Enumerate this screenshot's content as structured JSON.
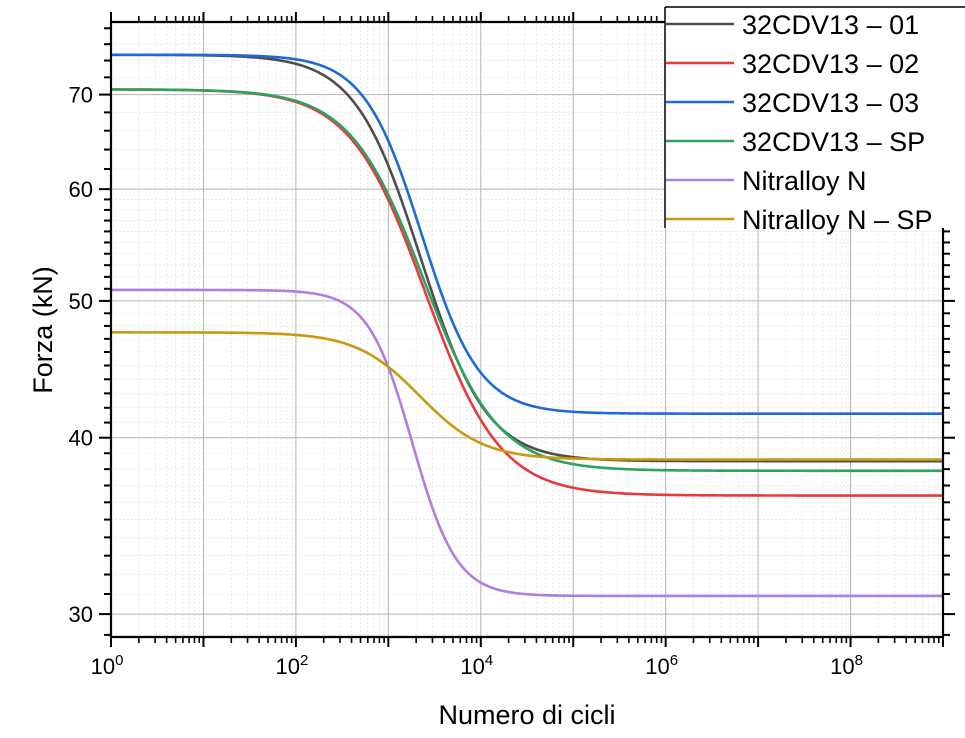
{
  "chart_data": {
    "type": "line",
    "title": "",
    "xlabel": "Numero di cicli",
    "ylabel": "Forza (kN)",
    "xscale": "log",
    "yscale": "log",
    "xlim": [
      1,
      1000000000
    ],
    "ylim": [
      28.9,
      78.8
    ],
    "x_ticks": [
      {
        "value": 1,
        "base": "10",
        "exp": "0"
      },
      {
        "value": 100,
        "base": "10",
        "exp": "2"
      },
      {
        "value": 10000,
        "base": "10",
        "exp": "4"
      },
      {
        "value": 1000000,
        "base": "10",
        "exp": "6"
      },
      {
        "value": 100000000,
        "base": "10",
        "exp": "8"
      }
    ],
    "y_ticks": [
      {
        "value": 30,
        "label": "30"
      },
      {
        "value": 40,
        "label": "40"
      },
      {
        "value": 50,
        "label": "50"
      },
      {
        "value": 60,
        "label": "60"
      },
      {
        "value": 70,
        "label": "70"
      }
    ],
    "grid": true,
    "legend_position": "top-right",
    "x": [
      1,
      10,
      100,
      316,
      1000,
      1778,
      3162,
      5623,
      10000,
      17783,
      31623,
      100000,
      1000000,
      10000000,
      100000000,
      1000000000
    ],
    "series": [
      {
        "name": "32CDV13 – 01",
        "color": "#4d4d4d",
        "values": [
          74.7,
          74.6,
          73.9,
          72.2,
          66.9,
          62.2,
          55.7,
          49.4,
          44.2,
          41.0,
          39.5,
          38.6,
          38.5,
          38.5,
          38.5,
          38.5
        ]
      },
      {
        "name": "32CDV13 – 02",
        "color": "#e8393c",
        "values": [
          70.6,
          70.3,
          69.1,
          66.8,
          61.4,
          57.2,
          51.8,
          46.7,
          42.4,
          39.6,
          38.0,
          36.7,
          36.4,
          36.4,
          36.4,
          36.4
        ]
      },
      {
        "name": "32CDV13 – 03",
        "color": "#1f6bd6",
        "values": [
          74.7,
          74.6,
          74.1,
          72.8,
          68.7,
          64.8,
          59.3,
          53.6,
          48.6,
          45.2,
          43.4,
          41.9,
          41.6,
          41.6,
          41.6,
          41.6
        ]
      },
      {
        "name": "32CDV13 – SP",
        "color": "#2ea35c",
        "values": [
          70.6,
          70.4,
          69.3,
          67.1,
          61.9,
          57.8,
          52.6,
          47.6,
          43.4,
          40.6,
          39.2,
          38.1,
          37.9,
          37.9,
          37.9,
          37.9
        ]
      },
      {
        "name": "Nitralloy N",
        "color": "#b07ee0",
        "values": [
          50.9,
          50.9,
          50.2,
          48.6,
          44.9,
          41.4,
          37.3,
          34.2,
          32.3,
          31.5,
          31.1,
          30.9,
          30.9,
          30.9,
          30.9,
          30.9
        ]
      },
      {
        "name": "Nitralloy N – SP",
        "color": "#c99a10",
        "values": [
          47.5,
          47.5,
          47.3,
          46.8,
          44.9,
          43.3,
          41.5,
          40.0,
          39.2,
          38.8,
          38.7,
          38.6,
          38.6,
          38.6,
          38.6,
          38.6
        ]
      }
    ],
    "model": [
      {
        "start": 74.7,
        "end": 38.5,
        "mid_log10N": 3.35,
        "k": 2.8
      },
      {
        "start": 70.6,
        "end": 36.4,
        "mid_log10N": 3.4,
        "k": 2.46
      },
      {
        "start": 74.7,
        "end": 41.6,
        "mid_log10N": 3.36,
        "k": 3.2
      },
      {
        "start": 70.6,
        "end": 37.9,
        "mid_log10N": 3.385,
        "k": 2.5
      },
      {
        "start": 50.9,
        "end": 30.9,
        "mid_log10N": 3.26,
        "k": 4.17
      },
      {
        "start": 47.5,
        "end": 38.6,
        "mid_log10N": 3.34,
        "k": 2.9
      }
    ]
  }
}
